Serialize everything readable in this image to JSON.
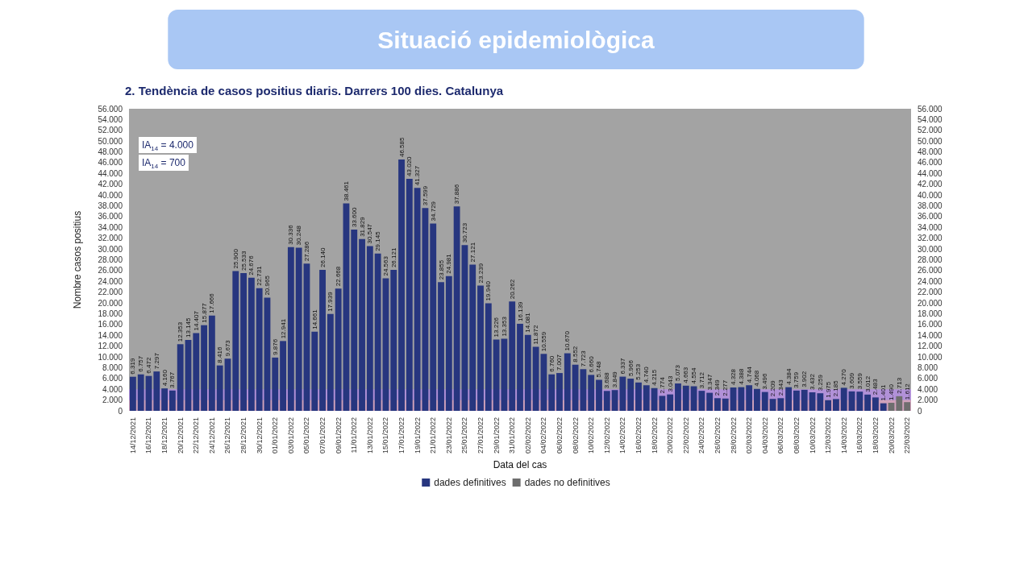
{
  "chart_data": {
    "type": "bar",
    "title": "Situació epidemiològica",
    "subtitle": "2. Tendència de casos positius diaris. Darrers 100 dies. Catalunya",
    "xlabel": "Data del cas",
    "ylabel": "Nombre casos positius",
    "categories": [
      "14/12/2021",
      null,
      "16/12/2021",
      null,
      "18/12/2021",
      null,
      "20/12/2021",
      null,
      "22/12/2021",
      null,
      "24/12/2021",
      null,
      "26/12/2021",
      null,
      "28/12/2021",
      null,
      "30/12/2021",
      null,
      "01/01/2022",
      null,
      "03/01/2022",
      null,
      "05/01/2022",
      null,
      "07/01/2022",
      null,
      "09/01/2022",
      null,
      "11/01/2022",
      null,
      "13/01/2022",
      null,
      "15/01/2022",
      null,
      "17/01/2022",
      null,
      "19/01/2022",
      null,
      "21/01/2022",
      null,
      "23/01/2022",
      null,
      "25/01/2022",
      null,
      "27/01/2022",
      null,
      "29/01/2022",
      null,
      "31/01/2022",
      null,
      "02/02/2022",
      null,
      "04/02/2022",
      null,
      "06/02/2022",
      null,
      "08/02/2022",
      null,
      "10/02/2022",
      null,
      "12/02/2022",
      null,
      "14/02/2022",
      null,
      "16/02/2022",
      null,
      "18/02/2022",
      null,
      "20/02/2022",
      null,
      "22/02/2022",
      null,
      "24/02/2022",
      null,
      "26/02/2022",
      null,
      "28/02/2022",
      null,
      "02/03/2022",
      null,
      "04/03/2022",
      null,
      "06/03/2022",
      null,
      "08/03/2022",
      null,
      "10/03/2022",
      null,
      "12/03/2022",
      null,
      "14/03/2022",
      null,
      "16/03/2022",
      null,
      "18/03/2022",
      null,
      "20/03/2022",
      null,
      "22/03/2022"
    ],
    "series": [
      {
        "name": "dades definitives",
        "color": "#27367f",
        "values": [
          6319,
          6757,
          6472,
          7297,
          4160,
          3767,
          12353,
          13145,
          14407,
          15877,
          17666,
          8416,
          9673,
          25900,
          25533,
          24676,
          22731,
          20965,
          9876,
          12941,
          30336,
          30248,
          27286,
          14661,
          26140,
          17939,
          22668,
          38461,
          33600,
          31829,
          30547,
          29145,
          24563,
          26121,
          46585,
          43020,
          41327,
          37599,
          34729,
          23855,
          24981,
          37886,
          30723,
          27121,
          23239,
          19940,
          13226,
          13353,
          20262,
          16139,
          14081,
          11872,
          10559,
          6760,
          7007,
          10670,
          8552,
          7723,
          6660,
          5748,
          3688,
          3849,
          6337,
          5966,
          5253,
          4740,
          4215,
          2774,
          3043,
          5073,
          4663,
          4554,
          3712,
          3347,
          2349,
          2277,
          4328,
          4388,
          4744,
          4068,
          3496,
          2209,
          2343,
          4384,
          3759,
          3902,
          3432,
          3259,
          1975,
          2185,
          4270,
          3609,
          3559,
          3012,
          2483,
          1401,
          null,
          null,
          null
        ],
        "value_labels": [
          "6.319",
          "6.757",
          "6.472",
          "7.297",
          "4.160",
          "3.767",
          "12.353",
          "13.145",
          "14.407",
          "15.877",
          "17.666",
          "8.416",
          "9.673",
          "25.900",
          "25.533",
          "24.676",
          "22.731",
          "20.965",
          "9.876",
          "12.941",
          "30.336",
          "30.248",
          "27.286",
          "14.661",
          "26.140",
          "17.939",
          "22.668",
          "38.461",
          "33.600",
          "31.829",
          "30.547",
          "29.145",
          "24.563",
          "26.121",
          "46.585",
          "43.020",
          "41.327",
          "37.599",
          "34.729",
          "23.855",
          "24.981",
          "37.886",
          "30.723",
          "27.121",
          "23.239",
          "19.940",
          "13.226",
          "13.353",
          "20.262",
          "16.139",
          "14.081",
          "11.872",
          "10.559",
          "6.760",
          "7.007",
          "10.670",
          "8.552",
          "7.723",
          "6.660",
          "5.748",
          "3.688",
          "3.849",
          "6.337",
          "5.966",
          "5.253",
          "4.740",
          "4.215",
          "2.774",
          "3.043",
          "5.073",
          "4.663",
          "4.554",
          "3.712",
          "3.347",
          "2.349",
          "2.277",
          "4.328",
          "4.388",
          "4.744",
          "4.068",
          "3.496",
          "2.209",
          "2.343",
          "4.384",
          "3.759",
          "3.902",
          "3.432",
          "3.259",
          "1.975",
          "2.185",
          "4.270",
          "3.609",
          "3.559",
          "3.012",
          "2.483",
          "1.401",
          null,
          null,
          null
        ]
      },
      {
        "name": "dades no definitives",
        "color": "#6e6e6e",
        "values": [
          null,
          null,
          null,
          null,
          null,
          null,
          null,
          null,
          null,
          null,
          null,
          null,
          null,
          null,
          null,
          null,
          null,
          null,
          null,
          null,
          null,
          null,
          null,
          null,
          null,
          null,
          null,
          null,
          null,
          null,
          null,
          null,
          null,
          null,
          null,
          null,
          null,
          null,
          null,
          null,
          null,
          null,
          null,
          null,
          null,
          null,
          null,
          null,
          null,
          null,
          null,
          null,
          null,
          null,
          null,
          null,
          null,
          null,
          null,
          null,
          null,
          null,
          null,
          null,
          null,
          null,
          null,
          null,
          null,
          null,
          null,
          null,
          null,
          null,
          null,
          null,
          null,
          null,
          null,
          null,
          null,
          null,
          null,
          null,
          null,
          null,
          null,
          null,
          null,
          null,
          null,
          null,
          null,
          null,
          null,
          null,
          1490,
          2713,
          1612
        ],
        "value_labels": [
          null,
          null,
          null,
          null,
          null,
          null,
          null,
          null,
          null,
          null,
          null,
          null,
          null,
          null,
          null,
          null,
          null,
          null,
          null,
          null,
          null,
          null,
          null,
          null,
          null,
          null,
          null,
          null,
          null,
          null,
          null,
          null,
          null,
          null,
          null,
          null,
          null,
          null,
          null,
          null,
          null,
          null,
          null,
          null,
          null,
          null,
          null,
          null,
          null,
          null,
          null,
          null,
          null,
          null,
          null,
          null,
          null,
          null,
          null,
          null,
          null,
          null,
          null,
          null,
          null,
          null,
          null,
          null,
          null,
          null,
          null,
          null,
          null,
          null,
          null,
          null,
          null,
          null,
          null,
          null,
          null,
          null,
          null,
          null,
          null,
          null,
          null,
          null,
          null,
          null,
          null,
          null,
          null,
          null,
          null,
          null,
          "1.490",
          "2.713",
          "1.612"
        ]
      }
    ],
    "ylim": [
      0,
      56000
    ],
    "yticks": [
      {
        "value": 0,
        "label": "0"
      },
      {
        "value": 2000,
        "label": "2.000"
      },
      {
        "value": 4000,
        "label": "4.000"
      },
      {
        "value": 6000,
        "label": "6.000"
      },
      {
        "value": 8000,
        "label": "8.000"
      },
      {
        "value": 10000,
        "label": "10.000"
      },
      {
        "value": 12000,
        "label": "12.000"
      },
      {
        "value": 14000,
        "label": "14.000"
      },
      {
        "value": 16000,
        "label": "16.000"
      },
      {
        "value": 18000,
        "label": "18.000"
      },
      {
        "value": 20000,
        "label": "20.000"
      },
      {
        "value": 22000,
        "label": "22.000"
      },
      {
        "value": 24000,
        "label": "24.000"
      },
      {
        "value": 26000,
        "label": "26.000"
      },
      {
        "value": 28000,
        "label": "28.000"
      },
      {
        "value": 30000,
        "label": "30.000"
      },
      {
        "value": 32000,
        "label": "32.000"
      },
      {
        "value": 34000,
        "label": "34.000"
      },
      {
        "value": 36000,
        "label": "36.000"
      },
      {
        "value": 38000,
        "label": "38.000"
      },
      {
        "value": 40000,
        "label": "40.000"
      },
      {
        "value": 42000,
        "label": "42.000"
      },
      {
        "value": 44000,
        "label": "44.000"
      },
      {
        "value": 46000,
        "label": "46.000"
      },
      {
        "value": 48000,
        "label": "48.000"
      },
      {
        "value": 50000,
        "label": "50.000"
      },
      {
        "value": 52000,
        "label": "52.000"
      },
      {
        "value": 54000,
        "label": "54.000"
      },
      {
        "value": 56000,
        "label": "56.000"
      }
    ],
    "y2lim": [
      0,
      56000
    ],
    "y2ticks": [
      {
        "value": 0,
        "label": "0"
      },
      {
        "value": 2000,
        "label": "2.000"
      },
      {
        "value": 4000,
        "label": "4.000"
      },
      {
        "value": 6000,
        "label": "6.000"
      },
      {
        "value": 8000,
        "label": "8.000"
      },
      {
        "value": 10000,
        "label": "10.000"
      },
      {
        "value": 12000,
        "label": "12.000"
      },
      {
        "value": 14000,
        "label": "14.000"
      },
      {
        "value": 16000,
        "label": "16.000"
      },
      {
        "value": 18000,
        "label": "18.000"
      },
      {
        "value": 20000,
        "label": "20.000"
      },
      {
        "value": 22000,
        "label": "22.000"
      },
      {
        "value": 24000,
        "label": "24.000"
      },
      {
        "value": 26000,
        "label": "26.000"
      },
      {
        "value": 28000,
        "label": "28.000"
      },
      {
        "value": 30000,
        "label": "30.000"
      },
      {
        "value": 32000,
        "label": "32.000"
      },
      {
        "value": 34000,
        "label": "34.000"
      },
      {
        "value": 36000,
        "label": "36.000"
      },
      {
        "value": 38000,
        "label": "38.000"
      },
      {
        "value": 40000,
        "label": "40.000"
      },
      {
        "value": 42000,
        "label": "42.000"
      },
      {
        "value": 44000,
        "label": "44.000"
      },
      {
        "value": 46000,
        "label": "46.000"
      },
      {
        "value": 48000,
        "label": "48.000"
      },
      {
        "value": 50000,
        "label": "50.000"
      },
      {
        "value": 52000,
        "label": "52.000"
      },
      {
        "value": 54000,
        "label": "54.000"
      },
      {
        "value": 56000,
        "label": "56.000"
      }
    ],
    "bands": [
      {
        "axis": "y",
        "from": 0,
        "to": 2000,
        "color": "#d8a2c0"
      },
      {
        "axis": "y",
        "from": 2000,
        "to": 4000,
        "color": "#b48ee2"
      }
    ],
    "annotations": [
      "IA$_{14}$ = 4.000",
      "IA$_{14}$ = 700"
    ],
    "grid": false,
    "legend": "bottom"
  }
}
